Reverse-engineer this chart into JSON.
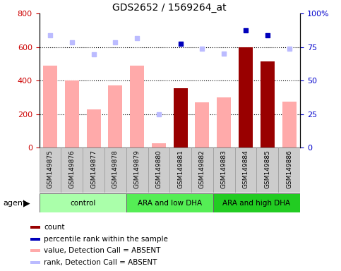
{
  "title": "GDS2652 / 1569264_at",
  "samples": [
    "GSM149875",
    "GSM149876",
    "GSM149877",
    "GSM149878",
    "GSM149879",
    "GSM149880",
    "GSM149881",
    "GSM149882",
    "GSM149883",
    "GSM149884",
    "GSM149885",
    "GSM149886"
  ],
  "groups": [
    {
      "label": "control",
      "start": 0,
      "end": 4,
      "color": "#aaffaa"
    },
    {
      "label": "ARA and low DHA",
      "start": 4,
      "end": 8,
      "color": "#55ee55"
    },
    {
      "label": "ARA and high DHA",
      "start": 8,
      "end": 12,
      "color": "#22cc22"
    }
  ],
  "bar_values": [
    490,
    400,
    230,
    370,
    490,
    25,
    355,
    270,
    300,
    600,
    515,
    275
  ],
  "bar_absent": [
    true,
    true,
    true,
    true,
    true,
    true,
    false,
    true,
    true,
    false,
    false,
    true
  ],
  "rank_absent_values": [
    670,
    630,
    555,
    630,
    655,
    200,
    null,
    590,
    560,
    null,
    null,
    590
  ],
  "percentile_rank_values": [
    null,
    null,
    null,
    null,
    null,
    null,
    620,
    null,
    null,
    700,
    670,
    null
  ],
  "ylim_left": [
    0,
    800
  ],
  "ylim_right": [
    0,
    100
  ],
  "yticks_left": [
    0,
    200,
    400,
    600,
    800
  ],
  "yticks_right": [
    0,
    25,
    50,
    75,
    100
  ],
  "bar_color_absent": "#ffaaaa",
  "bar_color_present": "#990000",
  "rank_absent_color": "#bbbbff",
  "percentile_rank_color": "#0000bb",
  "left_axis_color": "#cc0000",
  "right_axis_color": "#0000cc",
  "legend_items": [
    {
      "label": "count",
      "color": "#990000"
    },
    {
      "label": "percentile rank within the sample",
      "color": "#0000bb"
    },
    {
      "label": "value, Detection Call = ABSENT",
      "color": "#ffaaaa"
    },
    {
      "label": "rank, Detection Call = ABSENT",
      "color": "#bbbbff"
    }
  ]
}
